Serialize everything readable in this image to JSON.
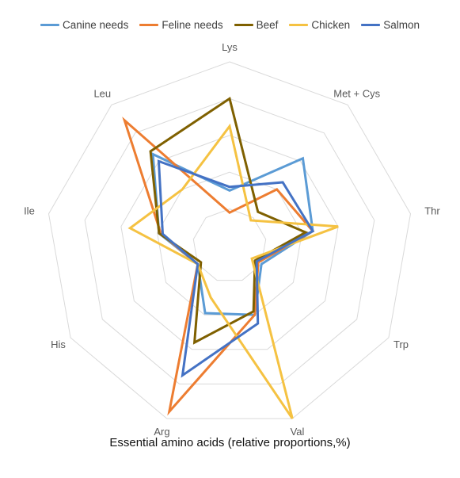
{
  "chart_data": {
    "type": "radar",
    "title": "Essential amino acids (relative proportions,%)",
    "axes": [
      "Lys",
      "Met + Cys",
      "Thr",
      "Trp",
      "Val",
      "Arg",
      "His",
      "Ile",
      "Leu"
    ],
    "range": [
      0,
      1.0
    ],
    "grid_levels": 5,
    "grid": true,
    "legend_position": "top",
    "series": [
      {
        "name": "Canine needs",
        "color": "#5b9bd5",
        "values": [
          0.3,
          0.62,
          0.46,
          0.2,
          0.4,
          0.39,
          0.2,
          0.39,
          0.65
        ]
      },
      {
        "name": "Feline needs",
        "color": "#ed7d31",
        "values": [
          0.18,
          0.4,
          0.46,
          0.18,
          0.4,
          0.96,
          0.2,
          0.38,
          0.89
        ]
      },
      {
        "name": "Beef",
        "color": "#7f6000",
        "values": [
          0.8,
          0.24,
          0.42,
          0.16,
          0.38,
          0.56,
          0.18,
          0.39,
          0.67
        ]
      },
      {
        "name": "Chicken",
        "color": "#f5c242",
        "values": [
          0.65,
          0.18,
          0.6,
          0.14,
          1.0,
          0.3,
          0.2,
          0.55,
          0.4
        ]
      },
      {
        "name": "Salmon",
        "color": "#4472c4",
        "values": [
          0.32,
          0.45,
          0.46,
          0.17,
          0.45,
          0.75,
          0.2,
          0.37,
          0.6
        ]
      }
    ]
  }
}
